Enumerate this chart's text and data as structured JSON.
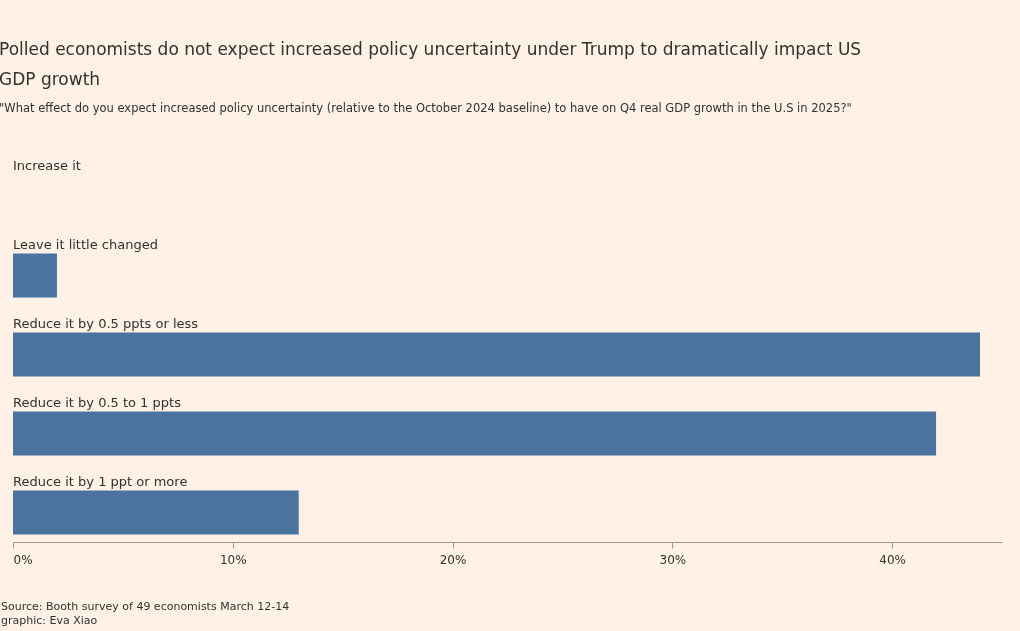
{
  "chart_data": {
    "type": "bar",
    "orientation": "horizontal",
    "title": "Polled economists do not expect increased policy uncertainty under Trump to dramatically impact US GDP growth",
    "subtitle": "\"What effect do you expect increased policy uncertainty (relative to the October 2024 baseline) to have on Q4 real GDP growth in the U.S in 2025?\"",
    "categories": [
      "Increase it",
      "Leave it little changed",
      "Reduce it by 0.5 ppts or less",
      "Reduce it by 0.5 to 1 ppts",
      "Reduce it by 1 ppt or more"
    ],
    "values": [
      0,
      2,
      44,
      42,
      13
    ],
    "color": "#4a739f",
    "xlim": [
      0,
      45
    ],
    "xticks": [
      {
        "value": 0,
        "label": "0%"
      },
      {
        "value": 10,
        "label": "10%"
      },
      {
        "value": 20,
        "label": "20%"
      },
      {
        "value": 30,
        "label": "30%"
      },
      {
        "value": 40,
        "label": "40%"
      }
    ],
    "grid": false,
    "annotations": [
      "Source: Booth survey of 49 economists March 12-14",
      "graphic: Eva Xiao"
    ]
  }
}
